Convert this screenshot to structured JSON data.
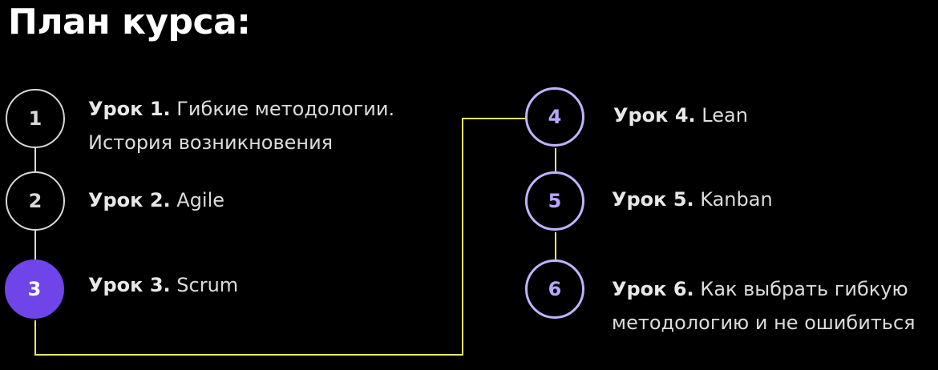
{
  "title": "План курса:",
  "colors": {
    "background": "#000000",
    "connector": "#e6e866",
    "active_fill": "#6f45e9",
    "circle_white": "#d9d9d9",
    "circle_purple": "#c3b2ff"
  },
  "lessons": [
    {
      "number": "1",
      "prefix": "Урок 1.",
      "text": "Гибкие методологии.",
      "text2": "История возникновения"
    },
    {
      "number": "2",
      "prefix": "Урок 2.",
      "text": "Agile"
    },
    {
      "number": "3",
      "prefix": "Урок 3.",
      "text": "Scrum"
    },
    {
      "number": "4",
      "prefix": "Урок 4.",
      "text": "Lean"
    },
    {
      "number": "5",
      "prefix": "Урок 5.",
      "text": "Kanban"
    },
    {
      "number": "6",
      "prefix": "Урок 6.",
      "text": "Как выбрать гибкую",
      "text2": "методологию и не ошибиться"
    }
  ]
}
